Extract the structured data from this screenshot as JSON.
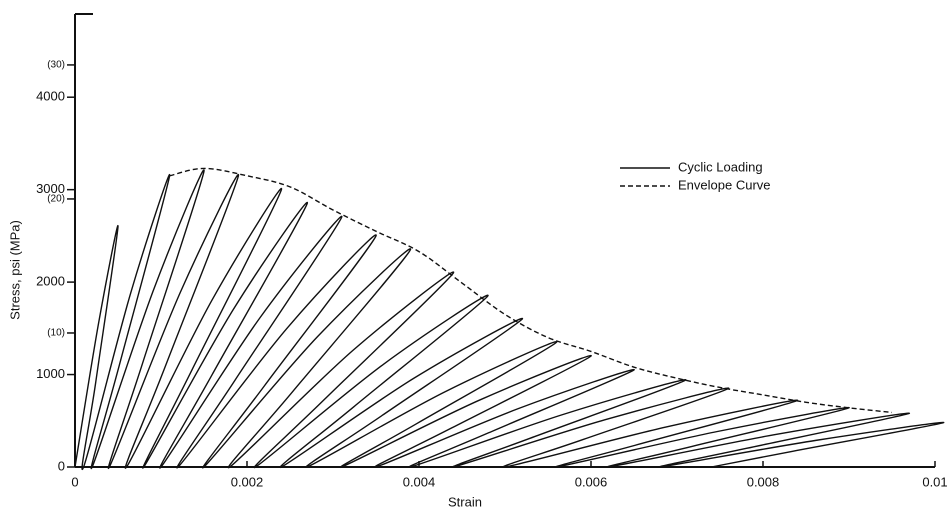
{
  "chart_data": {
    "type": "line",
    "x_label": "Strain",
    "y_label": "Stress, psi (MPa)",
    "xlim": [
      0,
      0.01
    ],
    "xticks": [
      0,
      0.002,
      0.004,
      0.006,
      0.008,
      0.01
    ],
    "ylim": [
      0,
      4900
    ],
    "yticks": [
      0,
      1000,
      2000,
      3000,
      4000
    ],
    "y2lim": [
      0,
      33.8
    ],
    "y2ticks": [
      {
        "value": 10,
        "label": "(10)"
      },
      {
        "value": 20,
        "label": "(20)"
      },
      {
        "value": 30,
        "label": "(30)"
      }
    ],
    "legend": "upper right",
    "grid": false,
    "series": [
      {
        "name": "Cyclic Loading",
        "color": "#111111",
        "dash": "solid",
        "x": [
          0,
          0.000275,
          0.0005,
          0.00024,
          0.0001,
          0.00065,
          0.0011,
          0.000515,
          0.0002,
          0.000915,
          0.0015,
          0.000785,
          0.0004,
          0.001225,
          0.0019,
          0.001055,
          0.0006,
          0.00159,
          0.0024,
          0.00136,
          0.0008,
          0.001845,
          0.0027,
          0.001595,
          0.001,
          0.002155,
          0.0031,
          0.001865,
          0.0012,
          0.002465,
          0.0035,
          0.0022,
          0.0015,
          0.00282,
          0.0039,
          0.002535,
          0.0018,
          0.00323,
          0.0044,
          0.002905,
          0.0021,
          0.003585,
          0.0048,
          0.00324,
          0.0024,
          0.00394,
          0.0052,
          0.003575,
          0.0027,
          0.004295,
          0.0056,
          0.003975,
          0.0031,
          0.004695,
          0.006,
          0.004375,
          0.0035,
          0.00515,
          0.0065,
          0.00481,
          0.0039,
          0.00566,
          0.0071,
          0.005345,
          0.0044,
          0.00616,
          0.0076,
          0.00591,
          0.005,
          0.00687,
          0.0084,
          0.00658,
          0.0056,
          0.00747,
          0.009,
          0.00718,
          0.0062,
          0.008125,
          0.0097,
          0.007815,
          0.0068,
          0.008615,
          0.0101,
          0.008345,
          0.0074
        ],
        "values": [
          0,
          1560,
          2600,
          910,
          0,
          1890,
          3150,
          1100,
          0,
          1920,
          3200,
          1120,
          0,
          1890,
          3150,
          1100,
          0,
          1800,
          3000,
          1050,
          0,
          1710,
          2850,
          1000,
          0,
          1620,
          2700,
          945,
          0,
          1500,
          2500,
          875,
          0,
          1410,
          2350,
          820,
          0,
          1260,
          2100,
          735,
          0,
          1110,
          1850,
          650,
          0,
          960,
          1600,
          560,
          0,
          810,
          1350,
          470,
          0,
          720,
          1200,
          420,
          0,
          630,
          1050,
          370,
          0,
          564,
          940,
          329,
          0,
          510,
          850,
          298,
          0,
          432,
          720,
          252,
          0,
          384,
          640,
          224,
          0,
          348,
          580,
          203,
          0,
          288,
          480,
          170,
          0
        ]
      },
      {
        "name": "Envelope Curve",
        "color": "#111111",
        "dash": "dashed",
        "x": [
          0.0011,
          0.0015,
          0.002,
          0.0025,
          0.003,
          0.0035,
          0.004,
          0.0045,
          0.005,
          0.0055,
          0.006,
          0.0065,
          0.007,
          0.0075,
          0.008,
          0.0085,
          0.009,
          0.0095
        ],
        "values": [
          3150,
          3230,
          3150,
          3030,
          2780,
          2550,
          2330,
          1990,
          1650,
          1400,
          1250,
          1080,
          960,
          860,
          780,
          700,
          640,
          590
        ]
      }
    ]
  }
}
